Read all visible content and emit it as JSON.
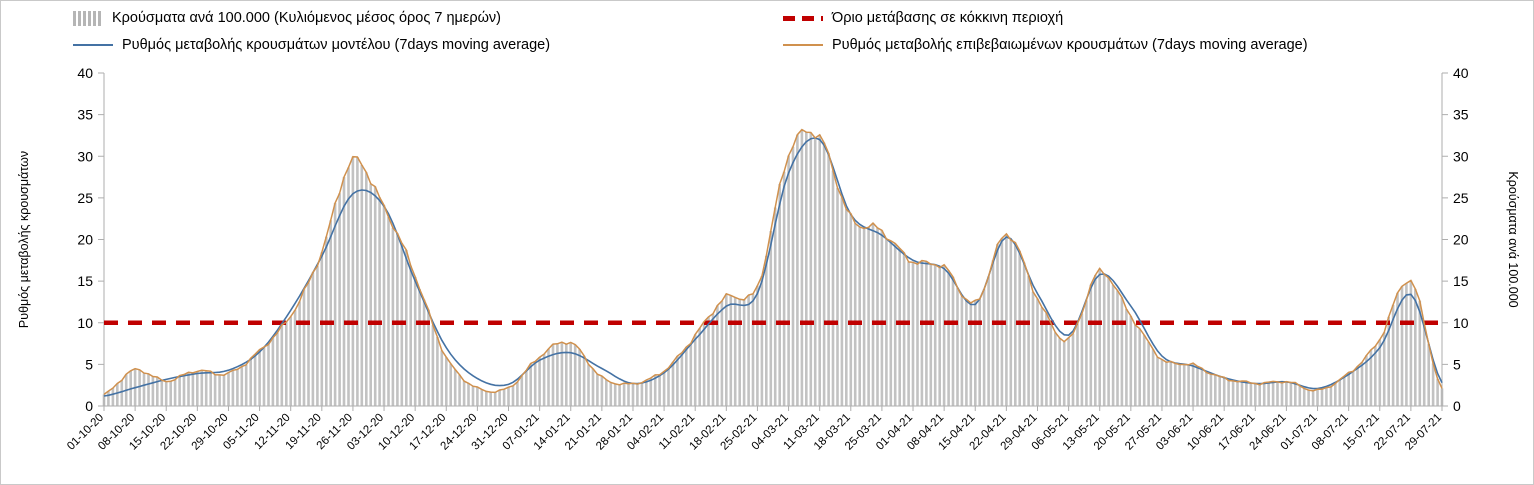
{
  "chart_data": {
    "type": "bar",
    "title": "",
    "legend_position": "top",
    "x_tick_rotation": 45,
    "grid": false,
    "ylim": [
      0,
      40
    ],
    "yticks": [
      0,
      5,
      10,
      15,
      20,
      25,
      30,
      35,
      40
    ],
    "ylabel_left": "Ρυθμός μεταβολής κρουσμάτων",
    "ylabel_right": "Κρούσματα ανά 100.000",
    "legend": [
      {
        "label": "Κρούσματα ανά 100.000 (Κυλιόμενος μέσος όρος 7 ημερών)",
        "style": "bars",
        "color": "#b5b5b5"
      },
      {
        "label": "Όριο μετάβασης σε κόκκινη περιοχή",
        "style": "dashed-line",
        "color": "#c00000"
      },
      {
        "label": "Ρυθμός μεταβολής κρουσμάτων μοντέλου (7days moving average)",
        "style": "line",
        "color": "#4472a4"
      },
      {
        "label": "Ρυθμός μεταβολής επιβεβαιωμένων κρουσμάτων (7days moving average)",
        "style": "line",
        "color": "#d0914e"
      }
    ],
    "threshold": {
      "label": "Όριο μετάβασης σε κόκκινη περιοχή",
      "value": 10,
      "color": "#c00000",
      "style": "dashed"
    },
    "categories": [
      "01-10-20",
      "08-10-20",
      "15-10-20",
      "22-10-20",
      "29-10-20",
      "05-11-20",
      "12-11-20",
      "19-11-20",
      "26-11-20",
      "03-12-20",
      "10-12-20",
      "17-12-20",
      "24-12-20",
      "31-12-20",
      "07-01-21",
      "14-01-21",
      "21-01-21",
      "28-01-21",
      "04-02-21",
      "11-02-21",
      "18-02-21",
      "25-02-21",
      "04-03-21",
      "11-03-21",
      "18-03-21",
      "25-03-21",
      "01-04-21",
      "08-04-21",
      "15-04-21",
      "22-04-21",
      "29-04-21",
      "06-05-21",
      "13-05-21",
      "20-05-21",
      "27-05-21",
      "03-06-21",
      "10-06-21",
      "17-06-21",
      "24-06-21",
      "01-07-21",
      "08-07-21",
      "15-07-21",
      "22-07-21",
      "29-07-21"
    ],
    "series": [
      {
        "name": "Κρούσματα ανά 100.000 (Κυλιόμενος μέσος όρος 7 ημερών)",
        "style": "bar",
        "axis": "right",
        "color": "#c2c2c2",
        "values": [
          1.3,
          4.4,
          3.0,
          4.2,
          4.0,
          6.5,
          11.0,
          18.5,
          29.5,
          24.0,
          15.5,
          6.0,
          2.1,
          2.2,
          6.0,
          7.5,
          3.5,
          2.6,
          4.3,
          8.5,
          13.0,
          14.5,
          30.0,
          32.5,
          22.5,
          21.0,
          17.5,
          16.5,
          12.5,
          20.5,
          13.0,
          8.0,
          16.0,
          11.0,
          5.5,
          5.0,
          3.3,
          2.7,
          3.0,
          1.8,
          4.0,
          8.0,
          15.0,
          2.0
        ]
      },
      {
        "name": "Ρυθμός μεταβολής κρουσμάτων μοντέλου (7days moving average)",
        "style": "line",
        "axis": "left",
        "color": "#4472a4",
        "values": [
          1.2,
          2.2,
          3.2,
          3.9,
          4.3,
          6.5,
          11.5,
          18.0,
          25.5,
          24.0,
          15.0,
          7.0,
          3.3,
          2.6,
          5.5,
          6.4,
          4.5,
          2.7,
          4.0,
          8.0,
          12.0,
          13.5,
          28.0,
          32.0,
          23.0,
          20.5,
          17.5,
          16.5,
          12.2,
          20.3,
          13.5,
          8.5,
          15.8,
          12.0,
          6.0,
          4.8,
          3.4,
          2.7,
          2.9,
          2.1,
          3.8,
          7.0,
          13.4,
          2.8
        ]
      },
      {
        "name": "Ρυθμός μεταβολής επιβεβαιωμένων κρουσμάτων (7days moving average)",
        "style": "line",
        "axis": "left",
        "color": "#d0914e",
        "values": [
          1.3,
          4.4,
          3.0,
          4.2,
          4.0,
          6.5,
          11.0,
          18.5,
          29.5,
          24.0,
          15.5,
          6.0,
          2.1,
          2.2,
          6.0,
          7.5,
          3.5,
          2.6,
          4.3,
          8.5,
          13.0,
          14.5,
          30.0,
          32.5,
          22.5,
          21.0,
          17.5,
          16.5,
          12.5,
          20.5,
          13.0,
          8.0,
          16.0,
          11.0,
          5.5,
          5.0,
          3.3,
          2.7,
          3.0,
          1.8,
          4.0,
          8.0,
          15.0,
          2.0
        ]
      }
    ]
  }
}
